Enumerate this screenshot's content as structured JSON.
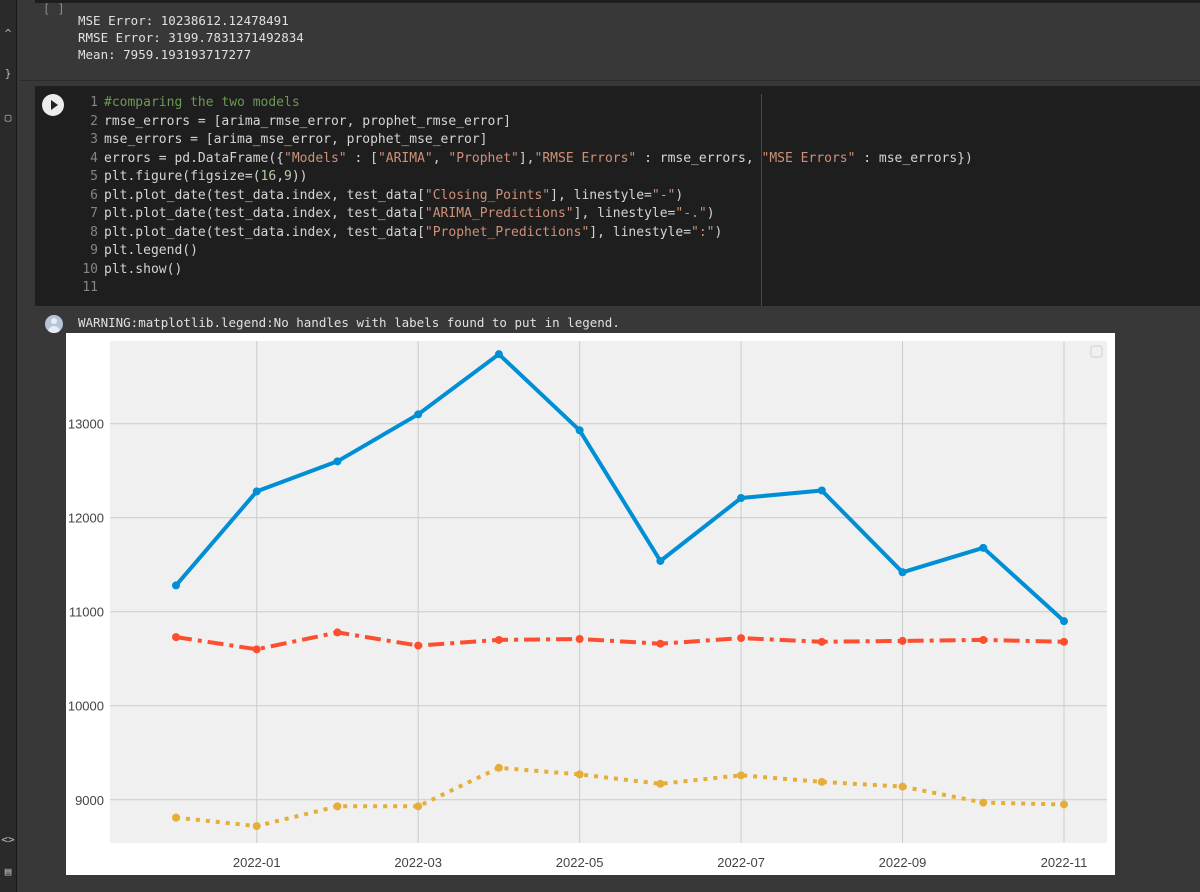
{
  "sidebar": {
    "glyphs": [
      "^",
      "}",
      "▢",
      "<>",
      "▤"
    ]
  },
  "prev_output": {
    "cell_bracket": "[ ]",
    "lines": [
      "MSE Error: 10238612.12478491",
      "RMSE Error: 3199.7831371492834",
      "Mean: 7959.193193717277"
    ]
  },
  "code_cell": {
    "line_numbers": [
      "1",
      "2",
      "3",
      "4",
      "5",
      "6",
      "7",
      "8",
      "9",
      "10",
      "11"
    ]
  },
  "output": {
    "warning": "WARNING:matplotlib.legend:No handles with labels found to put in legend."
  },
  "colors": {
    "series1": "#008fd5",
    "series2": "#fc4f30",
    "series3": "#e5ae38",
    "plot_bg": "#f0f0f0",
    "grid": "#cbcbcb"
  },
  "chart_data": {
    "type": "line",
    "title": "",
    "xlabel": "",
    "ylabel": "",
    "x": [
      "2021-12",
      "2022-01",
      "2022-02",
      "2022-03",
      "2022-04",
      "2022-05",
      "2022-06",
      "2022-07",
      "2022-08",
      "2022-09",
      "2022-10",
      "2022-11"
    ],
    "x_ticks": [
      "2022-01",
      "2022-03",
      "2022-05",
      "2022-07",
      "2022-09",
      "2022-11"
    ],
    "y_ticks": [
      9000,
      10000,
      11000,
      12000,
      13000
    ],
    "ylim": [
      8540,
      13880
    ],
    "grid": true,
    "legend": "top-right (empty)",
    "series": [
      {
        "name": "Closing_Points",
        "linestyle": "-",
        "values": [
          11280,
          12280,
          12600,
          13100,
          13740,
          12930,
          11540,
          12210,
          12290,
          11420,
          11680,
          10900
        ]
      },
      {
        "name": "ARIMA_Predictions",
        "linestyle": "-.",
        "values": [
          10730,
          10600,
          10780,
          10640,
          10700,
          10710,
          10660,
          10720,
          10680,
          10690,
          10700,
          10680
        ]
      },
      {
        "name": "Prophet_Predictions",
        "linestyle": ":",
        "values": [
          8810,
          8720,
          8930,
          8930,
          9340,
          9270,
          9170,
          9260,
          9190,
          9140,
          8970,
          8950
        ]
      }
    ]
  }
}
